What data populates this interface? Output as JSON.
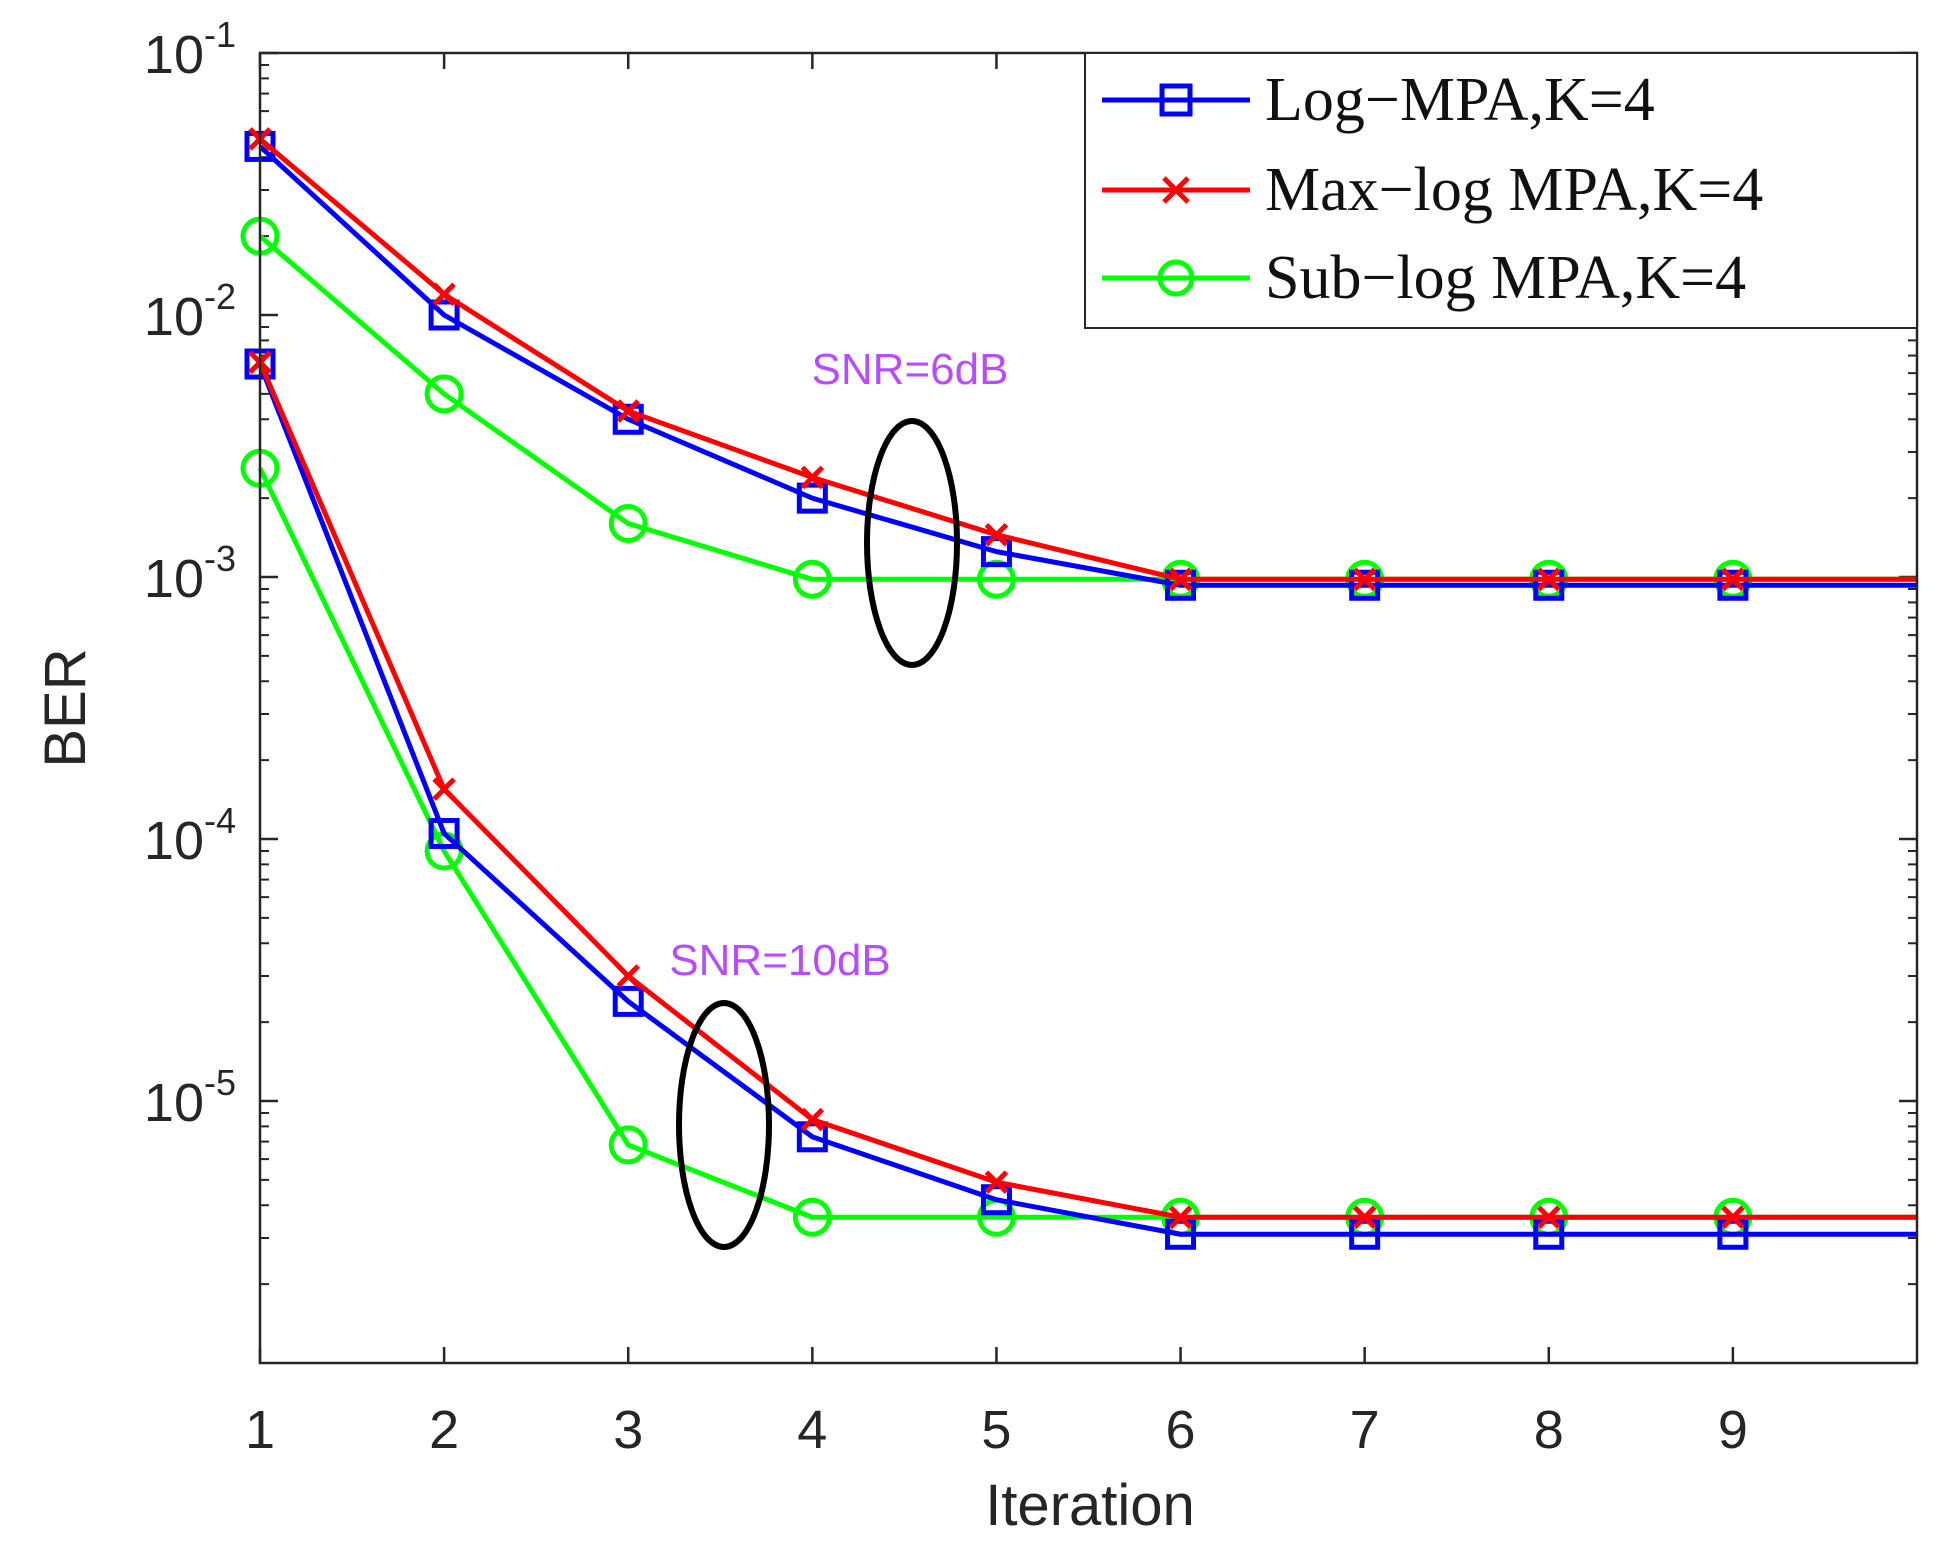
{
  "chart_data": {
    "type": "line",
    "title": "",
    "xlabel": "Iteration",
    "ylabel": "BER",
    "xlim": [
      1,
      10
    ],
    "ylim_log10": [
      -6,
      -1
    ],
    "x_ticks": [
      1,
      2,
      3,
      4,
      5,
      6,
      7,
      8,
      9
    ],
    "y_ticks": [
      {
        "base": "10",
        "exp": "-1",
        "value": 0.1
      },
      {
        "base": "10",
        "exp": "-2",
        "value": 0.01
      },
      {
        "base": "10",
        "exp": "-3",
        "value": 0.001
      },
      {
        "base": "10",
        "exp": "-4",
        "value": 0.0001
      },
      {
        "base": "10",
        "exp": "-5",
        "value": 1e-05
      }
    ],
    "x": [
      1,
      2,
      3,
      4,
      5,
      6,
      7,
      8,
      9
    ],
    "legend_position": "top-right",
    "series": [
      {
        "name": "Log−MPA,K=4",
        "snr": "6dB",
        "color": "#0000ff",
        "marker": "square",
        "values": [
          0.044,
          0.01,
          0.004,
          0.002,
          0.00125,
          0.00093,
          0.00093,
          0.00093,
          0.00093
        ]
      },
      {
        "name": "Max−log MPA,K=4",
        "snr": "6dB",
        "color": "#ff0000",
        "marker": "x",
        "values": [
          0.047,
          0.012,
          0.0043,
          0.0024,
          0.00145,
          0.00098,
          0.00098,
          0.00098,
          0.00098
        ]
      },
      {
        "name": "Sub−log MPA,K=4",
        "snr": "6dB",
        "color": "#00ff00",
        "marker": "circle",
        "values": [
          0.02,
          0.005,
          0.0016,
          0.00098,
          0.00098,
          0.00098,
          0.00098,
          0.00098,
          0.00098
        ]
      },
      {
        "name": "Log−MPA,K=4",
        "snr": "10dB",
        "color": "#0000ff",
        "marker": "square",
        "values": [
          0.0065,
          0.000105,
          2.4e-05,
          7.3e-06,
          4.2e-06,
          3.1e-06,
          3.1e-06,
          3.1e-06,
          3.1e-06
        ]
      },
      {
        "name": "Max−log MPA,K=4",
        "snr": "10dB",
        "color": "#ff0000",
        "marker": "x",
        "values": [
          0.0066,
          0.000155,
          3e-05,
          8.5e-06,
          4.9e-06,
          3.6e-06,
          3.6e-06,
          3.6e-06,
          3.6e-06
        ]
      },
      {
        "name": "Sub−log MPA,K=4",
        "snr": "10dB",
        "color": "#00ff00",
        "marker": "circle",
        "values": [
          0.0026,
          9e-05,
          6.8e-06,
          3.6e-06,
          3.6e-06,
          3.6e-06,
          3.6e-06,
          3.6e-06,
          3.6e-06
        ]
      }
    ],
    "annotations": [
      {
        "text": "SNR=6dB",
        "color": "#b84dff"
      },
      {
        "text": "SNR=10dB",
        "color": "#b84dff"
      }
    ]
  },
  "legend": [
    {
      "label": "Log−MPA,K=4",
      "color": "#0000ff",
      "marker": "square"
    },
    {
      "label": "Max−log MPA,K=4",
      "color": "#ff0000",
      "marker": "x"
    },
    {
      "label": "Sub−log MPA,K=4",
      "color": "#00ff00",
      "marker": "circle"
    }
  ]
}
